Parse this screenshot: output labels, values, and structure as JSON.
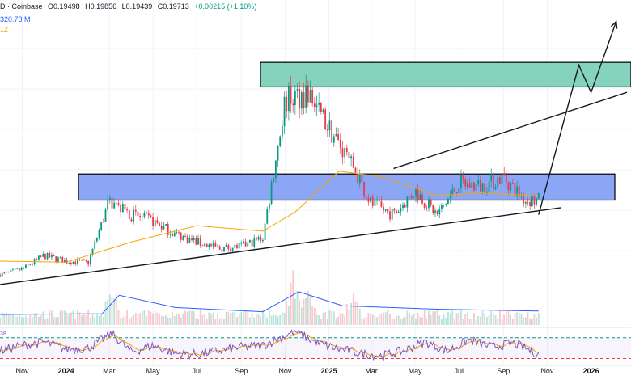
{
  "legend": {
    "symbol": "D · Coinbase",
    "open": "O0.19498",
    "high": "H0.19856",
    "low": "L0.19439",
    "close": "C0.19713",
    "change": "+0.00215 (+1.10%)",
    "volume": "320.78 M",
    "ma_value": "12",
    "rsi_value": "38"
  },
  "colors": {
    "up": "#089981",
    "down": "#f23645",
    "ma": "#f7a600",
    "volume_ma": "#2962ff",
    "rsi": "#7e57c2",
    "resistance_zone": "#7fd1b9",
    "support_zone": "#7f9cf5"
  },
  "chart_data": {
    "type": "line",
    "x_tick_labels": [
      "Nov",
      "2024",
      "Mar",
      "May",
      "Jul",
      "Sep",
      "Nov",
      "2025",
      "Mar",
      "May",
      "Jul",
      "Sep",
      "Nov",
      "2026"
    ],
    "ylim": [
      0.03,
      0.52
    ],
    "price_path": [
      {
        "t": "2023-10-01",
        "v": 0.06
      },
      {
        "t": "2023-11-01",
        "v": 0.07
      },
      {
        "t": "2023-12-01",
        "v": 0.095
      },
      {
        "t": "2024-01-01",
        "v": 0.085
      },
      {
        "t": "2024-02-01",
        "v": 0.082
      },
      {
        "t": "2024-03-01",
        "v": 0.195
      },
      {
        "t": "2024-04-01",
        "v": 0.17
      },
      {
        "t": "2024-05-01",
        "v": 0.158
      },
      {
        "t": "2024-06-01",
        "v": 0.135
      },
      {
        "t": "2024-07-01",
        "v": 0.12
      },
      {
        "t": "2024-08-01",
        "v": 0.108
      },
      {
        "t": "2024-09-01",
        "v": 0.112
      },
      {
        "t": "2024-10-01",
        "v": 0.128
      },
      {
        "t": "2024-11-01",
        "v": 0.38
      },
      {
        "t": "2024-12-01",
        "v": 0.395
      },
      {
        "t": "2025-01-01",
        "v": 0.33
      },
      {
        "t": "2025-02-01",
        "v": 0.265
      },
      {
        "t": "2025-03-01",
        "v": 0.19
      },
      {
        "t": "2025-04-01",
        "v": 0.17
      },
      {
        "t": "2025-05-01",
        "v": 0.215
      },
      {
        "t": "2025-06-01",
        "v": 0.17
      },
      {
        "t": "2025-07-01",
        "v": 0.228
      },
      {
        "t": "2025-08-01",
        "v": 0.222
      },
      {
        "t": "2025-09-01",
        "v": 0.24
      },
      {
        "t": "2025-10-01",
        "v": 0.197
      }
    ],
    "moving_average": [
      {
        "t": "2023-10-01",
        "v": 0.085
      },
      {
        "t": "2024-01-01",
        "v": 0.083
      },
      {
        "t": "2024-04-01",
        "v": 0.12
      },
      {
        "t": "2024-07-01",
        "v": 0.15
      },
      {
        "t": "2024-10-01",
        "v": 0.14
      },
      {
        "t": "2024-11-15",
        "v": 0.175
      },
      {
        "t": "2025-01-15",
        "v": 0.25
      },
      {
        "t": "2025-03-15",
        "v": 0.24
      },
      {
        "t": "2025-06-01",
        "v": 0.205
      },
      {
        "t": "2025-08-01",
        "v": 0.21
      },
      {
        "t": "2025-10-20",
        "v": 0.205
      }
    ],
    "zones": [
      {
        "name": "resistance",
        "low": 0.405,
        "high": 0.45
      },
      {
        "name": "support",
        "low": 0.197,
        "high": 0.245
      }
    ],
    "trendlines": [
      {
        "name": "rising-support",
        "from": {
          "t": "2023-10-01",
          "v": 0.042
        },
        "to": {
          "t": "2025-11-20",
          "v": 0.183
        }
      },
      {
        "name": "channel-top",
        "from": {
          "t": "2025-04-01",
          "v": 0.255
        },
        "to": {
          "t": "2026-02-20",
          "v": 0.395
        }
      }
    ],
    "projection": [
      {
        "t": "2025-10-20",
        "v": 0.17
      },
      {
        "t": "2025-12-15",
        "v": 0.445
      },
      {
        "t": "2026-01-01",
        "v": 0.395
      },
      {
        "t": "2026-02-05",
        "v": 0.525
      }
    ],
    "volume_ma": [
      {
        "t": "2023-10-01",
        "v": 0.3
      },
      {
        "t": "2024-02-20",
        "v": 0.32
      },
      {
        "t": "2024-03-15",
        "v": 0.85
      },
      {
        "t": "2024-06-01",
        "v": 0.5
      },
      {
        "t": "2024-10-01",
        "v": 0.38
      },
      {
        "t": "2024-11-20",
        "v": 0.95
      },
      {
        "t": "2025-01-20",
        "v": 0.55
      },
      {
        "t": "2025-06-01",
        "v": 0.45
      },
      {
        "t": "2025-10-20",
        "v": 0.4
      }
    ],
    "rsi": {
      "ylim": [
        20,
        85
      ],
      "levels": [
        70,
        30
      ],
      "values": [
        {
          "t": "2023-10-01",
          "v": 45
        },
        {
          "t": "2023-11-01",
          "v": 55
        },
        {
          "t": "2023-12-01",
          "v": 62
        },
        {
          "t": "2024-01-01",
          "v": 48
        },
        {
          "t": "2024-02-01",
          "v": 50
        },
        {
          "t": "2024-03-05",
          "v": 78
        },
        {
          "t": "2024-04-01",
          "v": 42
        },
        {
          "t": "2024-05-01",
          "v": 55
        },
        {
          "t": "2024-06-01",
          "v": 40
        },
        {
          "t": "2024-07-01",
          "v": 38
        },
        {
          "t": "2024-08-01",
          "v": 45
        },
        {
          "t": "2024-09-01",
          "v": 52
        },
        {
          "t": "2024-10-01",
          "v": 55
        },
        {
          "t": "2024-11-15",
          "v": 82
        },
        {
          "t": "2024-12-15",
          "v": 60
        },
        {
          "t": "2025-01-15",
          "v": 48
        },
        {
          "t": "2025-02-15",
          "v": 40
        },
        {
          "t": "2025-03-15",
          "v": 35
        },
        {
          "t": "2025-04-15",
          "v": 45
        },
        {
          "t": "2025-05-15",
          "v": 62
        },
        {
          "t": "2025-06-15",
          "v": 44
        },
        {
          "t": "2025-07-15",
          "v": 66
        },
        {
          "t": "2025-08-15",
          "v": 52
        },
        {
          "t": "2025-09-15",
          "v": 60
        },
        {
          "t": "2025-10-20",
          "v": 38
        }
      ]
    }
  }
}
